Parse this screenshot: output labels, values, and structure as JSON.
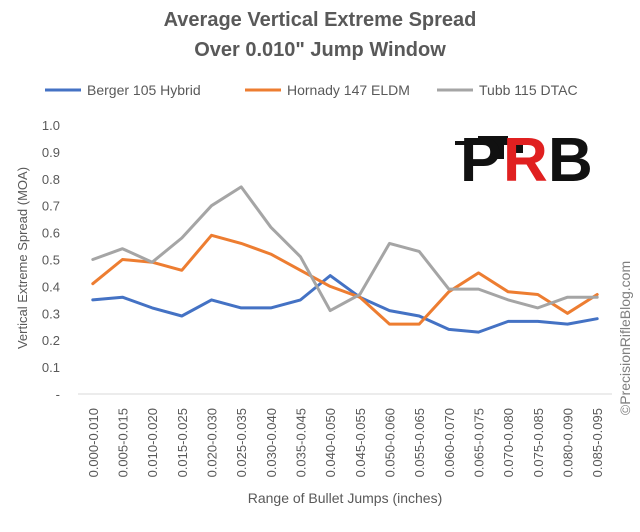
{
  "chart_data": {
    "type": "line",
    "title_lines": [
      "Average Vertical Extreme Spread",
      "Over 0.010\"  Jump Window"
    ],
    "xlabel": "Range of Bullet Jumps (inches)",
    "ylabel": "Vertical Extreme Spread (MOA)",
    "ylim": [
      0,
      1.0
    ],
    "yticks": [
      "-",
      "0.1",
      "0.2",
      "0.3",
      "0.4",
      "0.5",
      "0.6",
      "0.7",
      "0.8",
      "0.9",
      "1.0"
    ],
    "grid": false,
    "legend_position": "top",
    "categories": [
      "0.000-0.010",
      "0.005-0.015",
      "0.010-0.020",
      "0.015-0.025",
      "0.020-0.030",
      "0.025-0.035",
      "0.030-0.040",
      "0.035-0.045",
      "0.040-0.050",
      "0.045-0.055",
      "0.050-0.060",
      "0.055-0.065",
      "0.060-0.070",
      "0.065-0.075",
      "0.070-0.080",
      "0.075-0.085",
      "0.080-0.090",
      "0.085-0.095"
    ],
    "series": [
      {
        "name": "Berger 105 Hybrid",
        "color": "#4472C4",
        "values": [
          0.35,
          0.36,
          0.32,
          0.29,
          0.35,
          0.32,
          0.32,
          0.35,
          0.44,
          0.36,
          0.31,
          0.29,
          0.24,
          0.23,
          0.27,
          0.27,
          0.26,
          0.28
        ]
      },
      {
        "name": "Hornady 147 ELDM",
        "color": "#ED7D31",
        "values": [
          0.41,
          0.5,
          0.49,
          0.46,
          0.59,
          0.56,
          0.52,
          0.46,
          0.4,
          0.36,
          0.26,
          0.26,
          0.38,
          0.45,
          0.38,
          0.37,
          0.3,
          0.37
        ]
      },
      {
        "name": "Tubb 115 DTAC",
        "color": "#A5A5A5",
        "values": [
          0.5,
          0.54,
          0.49,
          0.58,
          0.7,
          0.77,
          0.62,
          0.51,
          0.31,
          0.37,
          0.56,
          0.53,
          0.39,
          0.39,
          0.35,
          0.32,
          0.36,
          0.36
        ]
      }
    ],
    "watermark": "©PrecisionRifleBlog.com",
    "logo": {
      "text": "PRB",
      "colors": [
        "#111111",
        "#E02020"
      ]
    }
  }
}
